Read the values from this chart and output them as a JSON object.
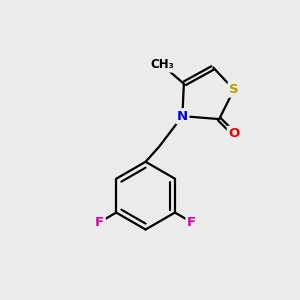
{
  "background_color": "#ebebeb",
  "bond_color": "#000000",
  "bond_width": 1.6,
  "atom_colors": {
    "S": "#b8a000",
    "N": "#0000ee",
    "O": "#ee0000",
    "F": "#dd00aa",
    "C": "#000000"
  },
  "font_size_atoms": 9.5,
  "font_size_methyl": 8.5,
  "figsize": [
    3.0,
    3.0
  ],
  "dpi": 100
}
